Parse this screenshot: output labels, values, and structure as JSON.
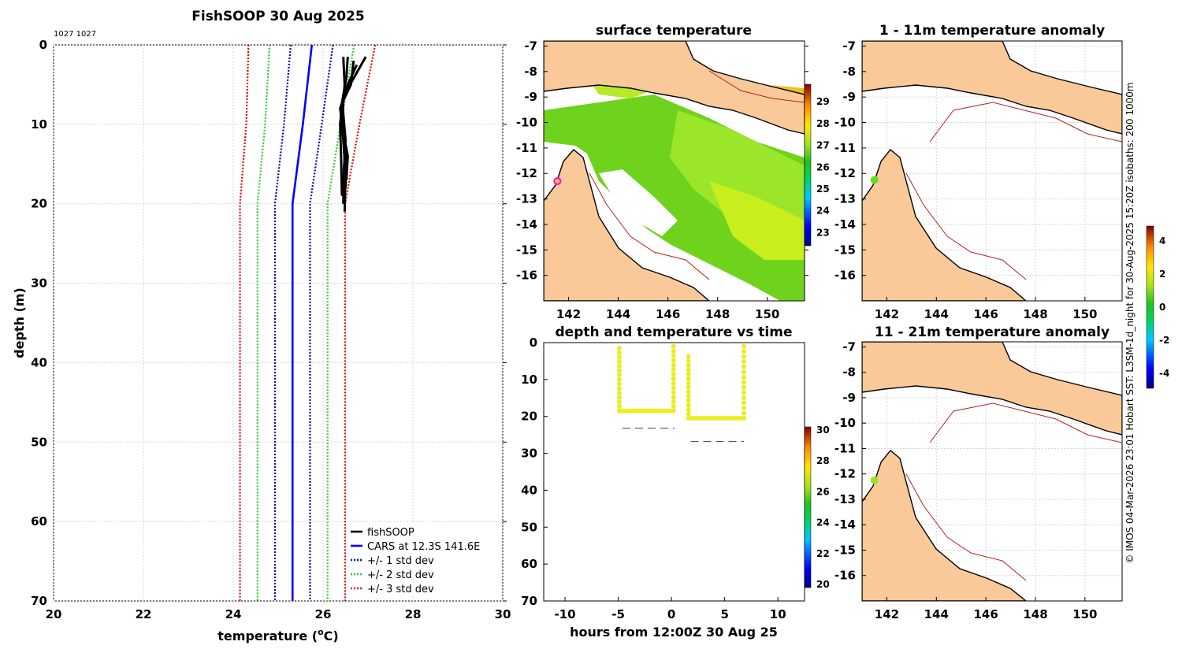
{
  "page": {
    "credit": "© IMOS 04-Mar-2026 23:01 Hobart SST: L3SM-1d_night for 30-Aug-2025 15:20Z isobaths: 200  1000m"
  },
  "colors": {
    "land": "#f9c99a",
    "profile": "#000000",
    "cars": "#0000ff",
    "std1": "#0000cc",
    "std2": "#33cc33",
    "std3": "#ee0000",
    "sea_warm": "#9be62a",
    "isobath": "#b22222"
  },
  "chart_data": [
    {
      "id": "profile",
      "type": "line",
      "title": "FishSOOP 30 Aug 2025",
      "subtitle": "1027 1027",
      "xlabel": "temperature (",
      "xlabel_sup": "o",
      "xlabel_end": "C)",
      "ylabel": "depth (m)",
      "xlim": [
        20,
        30
      ],
      "ylim": [
        0,
        70
      ],
      "y_reversed": true,
      "xticks": [
        20,
        22,
        24,
        26,
        28,
        30
      ],
      "yticks": [
        0,
        10,
        20,
        30,
        40,
        50,
        60,
        70
      ],
      "grid": true,
      "legend_position": "bottom-right",
      "legend": [
        {
          "label": "fishSOOP",
          "color": "#000000",
          "style": "solid"
        },
        {
          "label": "CARS at 12.3S 141.6E",
          "color": "#0000ff",
          "style": "solid"
        },
        {
          "label": "+/- 1 std dev",
          "color": "#0000cc",
          "style": "dotted"
        },
        {
          "label": "+/- 2 std dev",
          "color": "#33cc33",
          "style": "dotted"
        },
        {
          "label": "+/- 3 std dev",
          "color": "#ee0000",
          "style": "dotted"
        }
      ],
      "cars": {
        "depth": [
          0,
          10,
          20,
          70
        ],
        "temp": [
          25.75,
          25.55,
          25.32,
          25.32
        ]
      },
      "std_offsets": {
        "depth": [
          0,
          10,
          20,
          70
        ],
        "sd": [
          0.47,
          0.42,
          0.39,
          0.39
        ]
      },
      "fishsoop": [
        {
          "depth": [
            1.5,
            5,
            8,
            12,
            16,
            20
          ],
          "temp": [
            26.45,
            26.48,
            26.44,
            26.5,
            26.46,
            26.45
          ]
        },
        {
          "depth": [
            1.5,
            4,
            7,
            10,
            14,
            19
          ],
          "temp": [
            26.55,
            26.52,
            26.43,
            26.38,
            26.4,
            26.42
          ]
        },
        {
          "depth": [
            2,
            5,
            7,
            9,
            12,
            16,
            21
          ],
          "temp": [
            26.68,
            26.62,
            26.45,
            26.4,
            26.45,
            26.5,
            26.48
          ]
        },
        {
          "depth": [
            1.5,
            3,
            5,
            7,
            10,
            14,
            18
          ],
          "temp": [
            26.95,
            26.8,
            26.6,
            26.45,
            26.44,
            26.52,
            26.5
          ]
        },
        {
          "depth": [
            2.5,
            5,
            8,
            11,
            14,
            17
          ],
          "temp": [
            26.75,
            26.55,
            26.38,
            26.45,
            26.55,
            26.52
          ]
        }
      ]
    },
    {
      "id": "sst-map",
      "type": "heatmap",
      "title": "surface temperature",
      "xticks": [
        142,
        144,
        146,
        148,
        150
      ],
      "yticks": [
        -7,
        -8,
        -9,
        -10,
        -11,
        -12,
        -13,
        -14,
        -15,
        -16
      ],
      "xlim": [
        141,
        151.5
      ],
      "ylim": [
        -17,
        -6.8
      ],
      "colorbar": {
        "ticks": [
          23,
          24,
          25,
          26,
          27,
          28,
          29
        ],
        "range": [
          22.4,
          29.8
        ]
      },
      "marker": {
        "lon": 141.55,
        "lat": -12.3
      }
    },
    {
      "id": "time-series",
      "type": "scatter",
      "title": "depth and temperature vs time",
      "xlabel": "hours from 12:00Z 30 Aug 25",
      "xlim": [
        -12,
        12.5
      ],
      "ylim": [
        0,
        70
      ],
      "y_reversed": true,
      "xticks": [
        -10,
        -5,
        0,
        5,
        10
      ],
      "yticks": [
        0,
        10,
        20,
        30,
        40,
        50,
        60,
        70
      ],
      "colorbar": {
        "ticks": [
          20,
          22,
          24,
          26,
          28,
          30
        ],
        "range": [
          19.8,
          30.2
        ]
      },
      "casts": [
        {
          "t0": -4.9,
          "t1": 0.2,
          "start_depth": 1.5,
          "bottom_depth": 18.5,
          "end_depth": 1.0
        },
        {
          "t0": 1.6,
          "t1": 6.8,
          "start_depth": 3.8,
          "bottom_depth": 20.5,
          "end_depth": 1.0
        }
      ],
      "bottom_refs": [
        {
          "t0": -4.6,
          "t1": 0.3,
          "depth": 23.2
        },
        {
          "t0": 1.8,
          "t1": 6.8,
          "depth": 26.8
        }
      ]
    },
    {
      "id": "anom-map-1",
      "type": "heatmap",
      "title": "1 - 11m temperature anomaly",
      "xticks": [
        142,
        144,
        146,
        148,
        150
      ],
      "yticks": [
        -7,
        -8,
        -9,
        -10,
        -11,
        -12,
        -13,
        -14,
        -15,
        -16
      ],
      "xlim": [
        141,
        151.5
      ],
      "ylim": [
        -17,
        -6.8
      ],
      "marker": {
        "lon": 141.5,
        "lat": -12.25
      }
    },
    {
      "id": "anom-map-2",
      "type": "heatmap",
      "title": "11 - 21m temperature anomaly",
      "xticks": [
        142,
        144,
        146,
        148,
        150
      ],
      "yticks": [
        -7,
        -8,
        -9,
        -10,
        -11,
        -12,
        -13,
        -14,
        -15,
        -16
      ],
      "xlim": [
        141,
        151.5
      ],
      "ylim": [
        -17,
        -6.8
      ],
      "marker": {
        "lon": 141.5,
        "lat": -12.25
      },
      "colorbar": {
        "ticks": [
          -4,
          -2,
          0,
          2,
          4
        ],
        "range": [
          -4.9,
          4.9
        ]
      }
    }
  ]
}
